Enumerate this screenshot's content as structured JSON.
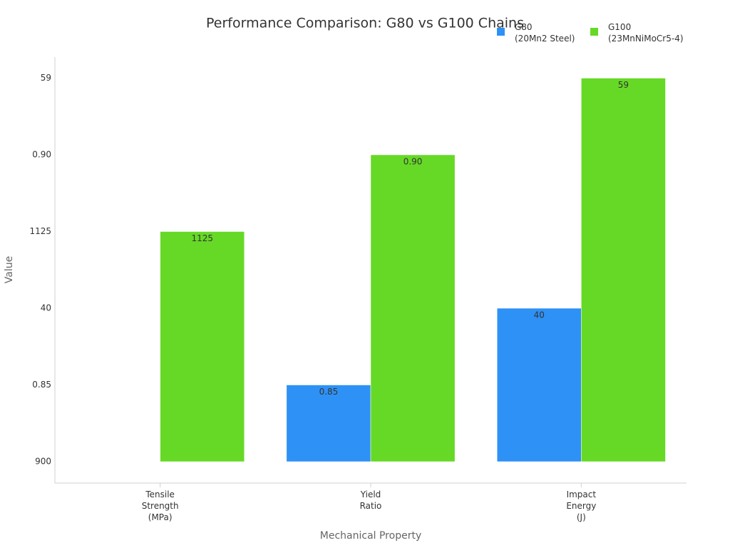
{
  "chart_data": {
    "type": "bar",
    "title": "Performance Comparison: G80 vs G100 Chains",
    "xlabel": "Mechanical Property",
    "ylabel": "Value",
    "categories": [
      "Tensile\nStrength\n(MPa)",
      "Yield\nRatio",
      "Impact\nEnergy\n(J)"
    ],
    "y_scale": "category",
    "yticks": [
      900,
      0.85,
      40,
      1125,
      {
        "value": 0.9,
        "label": "0.90"
      },
      59
    ],
    "legend": "top-right",
    "series": [
      {
        "name": "G80\n(20Mn2 Steel)",
        "color": "#2e91f5",
        "values": [
          900,
          0.85,
          40
        ],
        "value_labels": [
          null,
          "0.85",
          "40"
        ]
      },
      {
        "name": "G100\n(23MnNiMoCr5-4)",
        "color": "#66d926",
        "values": [
          1125,
          0.9,
          59
        ],
        "value_labels": [
          "1125",
          "0.90",
          "59"
        ]
      }
    ]
  }
}
